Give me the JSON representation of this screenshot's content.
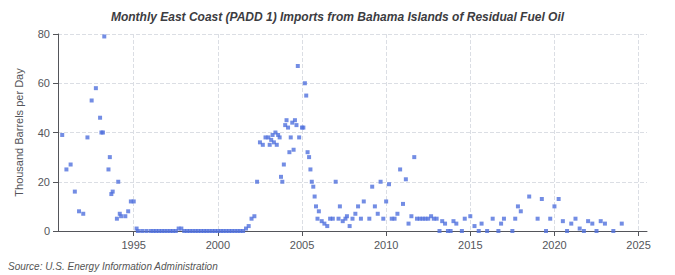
{
  "chart_data": {
    "type": "scatter",
    "title": "Monthly East Coast (PADD 1) Imports from Bahama Islands of Residual Fuel Oil",
    "ylabel": "Thousand Barrels per Day",
    "annotations": [
      "Source: U.S. Energy Information Administration"
    ],
    "marker": "square",
    "grid": true,
    "xlim": [
      1990.5,
      2025.5
    ],
    "ylim": [
      0,
      80
    ],
    "yticks": [
      0,
      20,
      40,
      60,
      80
    ],
    "xticks": [
      1995,
      2000,
      2005,
      2010,
      2015,
      2020,
      2025
    ],
    "x": [
      1990.75,
      1991.0,
      1991.25,
      1991.5,
      1991.75,
      1992.0,
      1992.25,
      1992.5,
      1992.75,
      1993.0,
      1993.08,
      1993.17,
      1993.25,
      1993.5,
      1993.58,
      1993.67,
      1993.75,
      1994.0,
      1994.08,
      1994.17,
      1994.25,
      1994.5,
      1994.67,
      1994.83,
      1995.0,
      1995.17,
      1995.25,
      1995.5,
      1995.75,
      1996.0,
      1996.17,
      1996.33,
      1996.5,
      1996.67,
      1996.83,
      1997.0,
      1997.17,
      1997.33,
      1997.5,
      1997.67,
      1997.83,
      1998.0,
      1998.17,
      1998.33,
      1998.5,
      1998.67,
      1998.83,
      1999.0,
      1999.17,
      1999.33,
      1999.5,
      1999.67,
      1999.83,
      2000.0,
      2000.17,
      2000.33,
      2000.5,
      2000.67,
      2000.83,
      2001.0,
      2001.17,
      2001.33,
      2001.5,
      2001.67,
      2001.83,
      2002.0,
      2002.17,
      2002.33,
      2002.5,
      2002.67,
      2002.83,
      2003.0,
      2003.08,
      2003.17,
      2003.25,
      2003.33,
      2003.42,
      2003.5,
      2003.58,
      2003.67,
      2003.75,
      2003.83,
      2003.92,
      2004.0,
      2004.08,
      2004.17,
      2004.25,
      2004.33,
      2004.42,
      2004.5,
      2004.58,
      2004.67,
      2004.75,
      2004.83,
      2005.0,
      2005.08,
      2005.17,
      2005.25,
      2005.33,
      2005.42,
      2005.5,
      2005.58,
      2005.67,
      2005.75,
      2005.83,
      2005.92,
      2006.0,
      2006.17,
      2006.33,
      2006.5,
      2006.67,
      2006.83,
      2007.0,
      2007.17,
      2007.25,
      2007.42,
      2007.58,
      2007.67,
      2007.83,
      2008.0,
      2008.17,
      2008.33,
      2008.5,
      2008.67,
      2009.0,
      2009.17,
      2009.33,
      2009.5,
      2009.67,
      2009.83,
      2010.0,
      2010.17,
      2010.33,
      2010.5,
      2010.67,
      2010.83,
      2011.0,
      2011.17,
      2011.33,
      2011.5,
      2011.67,
      2011.83,
      2012.0,
      2012.17,
      2012.33,
      2012.5,
      2012.67,
      2012.83,
      2013.0,
      2013.17,
      2013.33,
      2013.5,
      2013.67,
      2013.83,
      2014.0,
      2014.17,
      2014.5,
      2014.67,
      2015.0,
      2015.25,
      2015.5,
      2015.67,
      2016.0,
      2016.33,
      2016.67,
      2016.83,
      2017.0,
      2017.5,
      2017.67,
      2017.83,
      2018.0,
      2018.5,
      2019.0,
      2019.25,
      2019.5,
      2019.75,
      2020.0,
      2020.25,
      2020.5,
      2020.75,
      2021.0,
      2021.25,
      2021.5,
      2021.75,
      2022.0,
      2022.25,
      2022.5,
      2022.75,
      2023.0,
      2023.5,
      2024.0
    ],
    "values": [
      39,
      25,
      27,
      16,
      8,
      7,
      38,
      53,
      58,
      46,
      40,
      40,
      79,
      25,
      30,
      15,
      16,
      5,
      20,
      7,
      6,
      6,
      8,
      12,
      12,
      1,
      0,
      0,
      0,
      0,
      0,
      0,
      0,
      0,
      0,
      0,
      0,
      0,
      0,
      1,
      1,
      0,
      0,
      0,
      0,
      0,
      0,
      0,
      0,
      0,
      0,
      0,
      0,
      0,
      0,
      0,
      0,
      0,
      0,
      0,
      0,
      0,
      0,
      1,
      2,
      5,
      6,
      20,
      36,
      35,
      38,
      38,
      35,
      37,
      39,
      36,
      40,
      35,
      39,
      38,
      22,
      20,
      27,
      43,
      45,
      42,
      32,
      38,
      44,
      33,
      45,
      43,
      67,
      38,
      42,
      42,
      60,
      55,
      32,
      30,
      25,
      20,
      18,
      14,
      10,
      5,
      8,
      4,
      3,
      2,
      5,
      5,
      20,
      5,
      10,
      4,
      5,
      6,
      2,
      5,
      7,
      10,
      5,
      12,
      5,
      18,
      10,
      7,
      20,
      5,
      12,
      19,
      5,
      5,
      7,
      25,
      11,
      21,
      3,
      6,
      30,
      5,
      5,
      5,
      5,
      5,
      6,
      5,
      5,
      0,
      4,
      3,
      0,
      0,
      4,
      3,
      0,
      5,
      6,
      2,
      0,
      3,
      0,
      5,
      0,
      3,
      5,
      0,
      5,
      10,
      8,
      14,
      5,
      13,
      0,
      5,
      10,
      13,
      4,
      0,
      3,
      5,
      1,
      0,
      4,
      3,
      0,
      4,
      3,
      0,
      3
    ]
  }
}
